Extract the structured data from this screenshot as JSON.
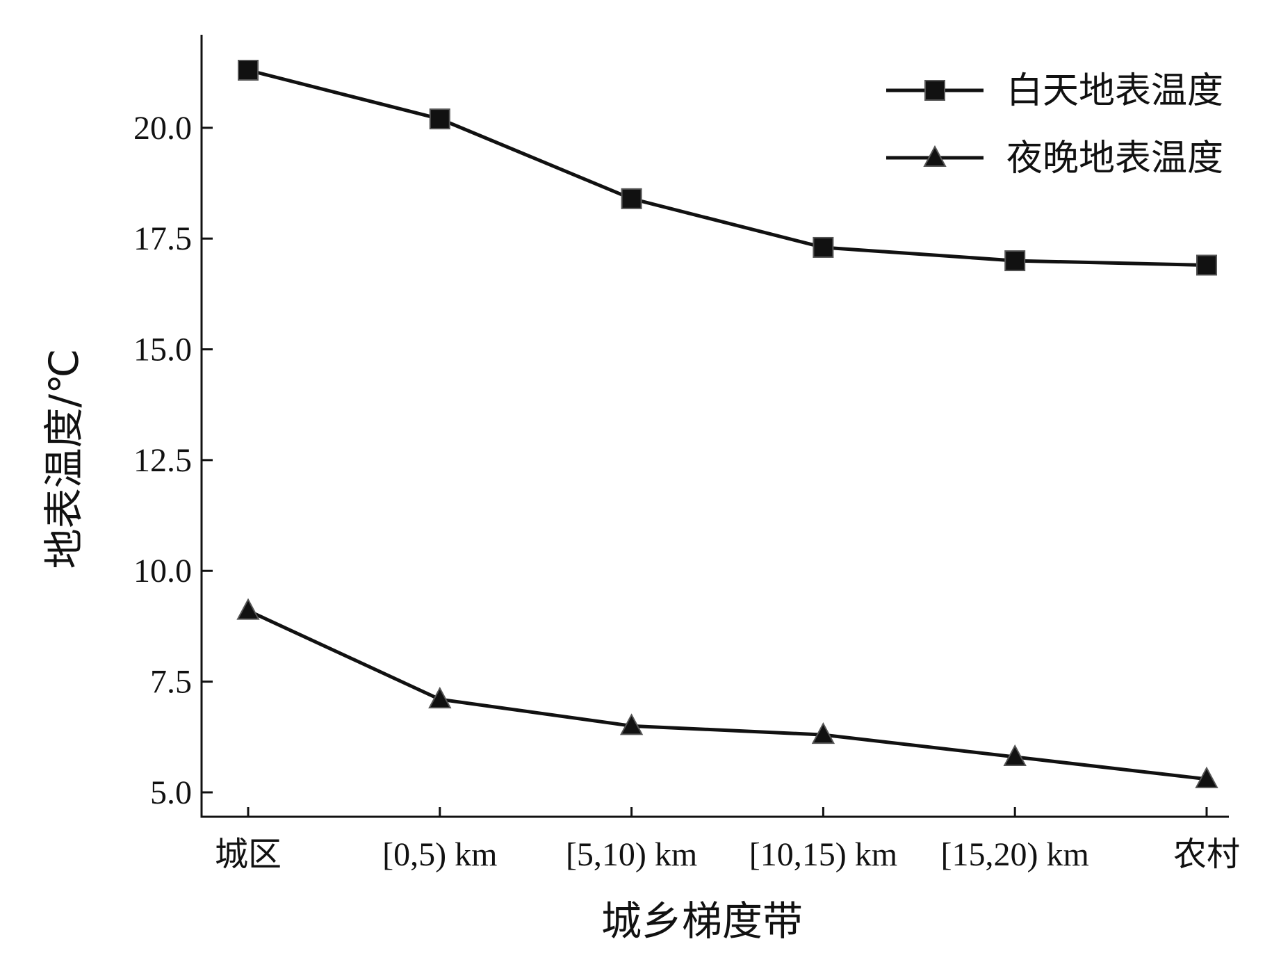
{
  "chart_data": {
    "type": "line",
    "categories": [
      "城区",
      "[0,5) km",
      "[5,10) km",
      "[10,15) km",
      "[15,20) km",
      "农村"
    ],
    "series": [
      {
        "name": "白天地表温度",
        "marker": "square",
        "values": [
          21.3,
          20.2,
          18.4,
          17.3,
          17.0,
          16.9
        ]
      },
      {
        "name": "夜晚地表温度",
        "marker": "triangle",
        "values": [
          9.1,
          7.1,
          6.5,
          6.3,
          5.8,
          5.3
        ]
      }
    ],
    "xlabel": "城乡梯度带",
    "ylabel": "地表温度/℃",
    "ylim": [
      4.45,
      22.1
    ],
    "yticks": [
      "5.0",
      "7.5",
      "10.0",
      "12.5",
      "15.0",
      "17.5",
      "20.0"
    ],
    "legend_position": "top-right",
    "grid": false,
    "colors": {
      "line": "#111111"
    }
  }
}
